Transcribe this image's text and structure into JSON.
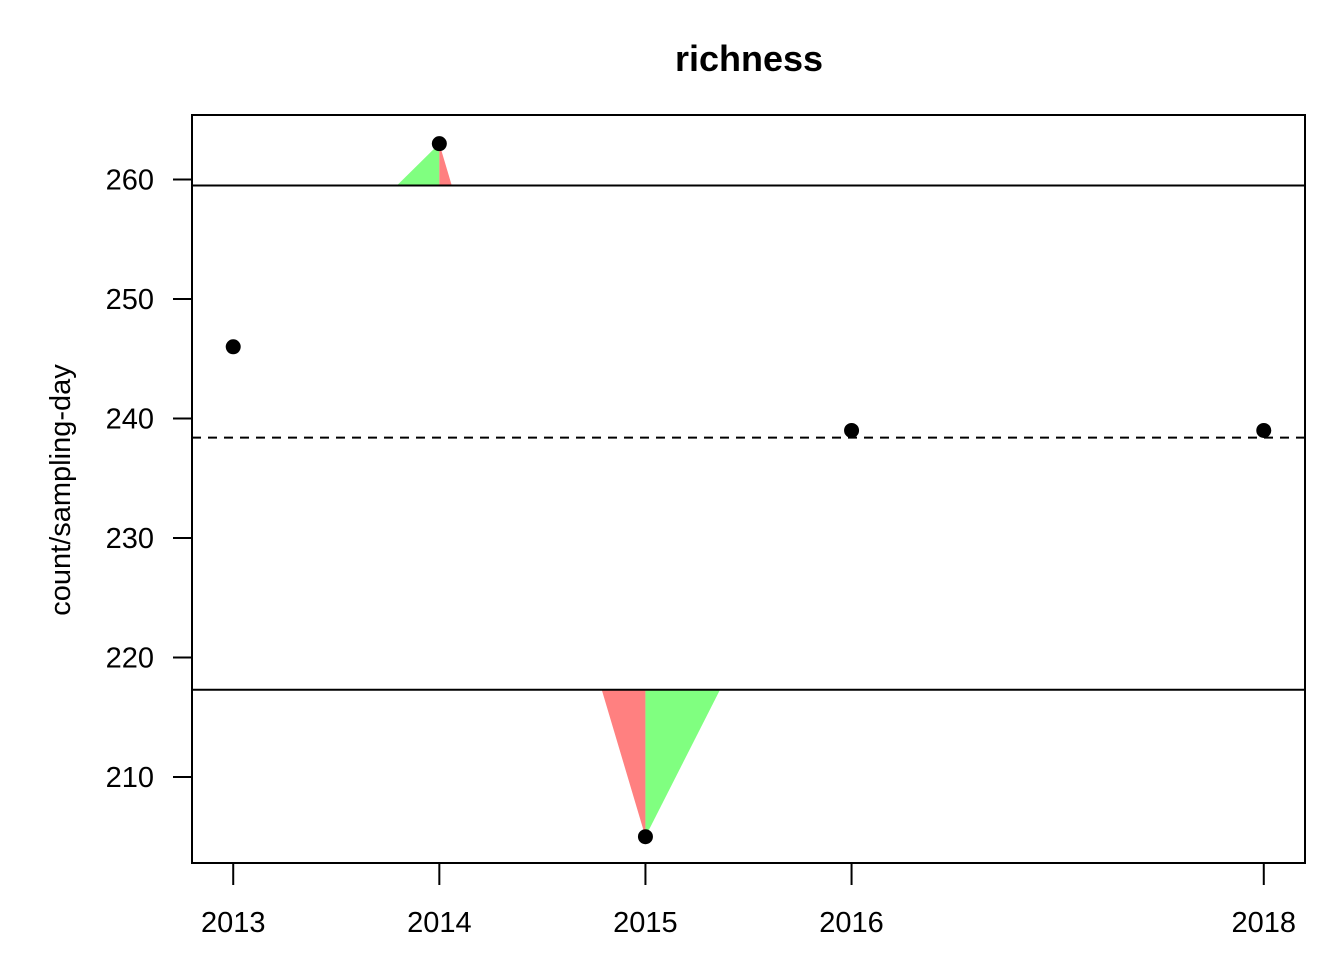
{
  "chart_data": {
    "type": "scatter",
    "title": "richness",
    "xlabel": "",
    "ylabel": "count/sampling-day",
    "x_ticks": [
      "2013",
      "2014",
      "2015",
      "2016",
      "2018"
    ],
    "y_ticks": [
      "210",
      "220",
      "230",
      "240",
      "250",
      "260"
    ],
    "xlim": [
      2012.8,
      2018.2
    ],
    "ylim": [
      202.8,
      265.4
    ],
    "x": [
      2013,
      2014,
      2015,
      2016,
      2018
    ],
    "values": [
      246,
      263,
      205,
      239,
      239
    ],
    "center_line": 238.4,
    "upper_limit": 259.5,
    "lower_limit": 217.3,
    "exceedance_colors": {
      "rising": "#80ff80",
      "falling": "#ff8080"
    },
    "point_color": "#000000",
    "grid": false
  }
}
